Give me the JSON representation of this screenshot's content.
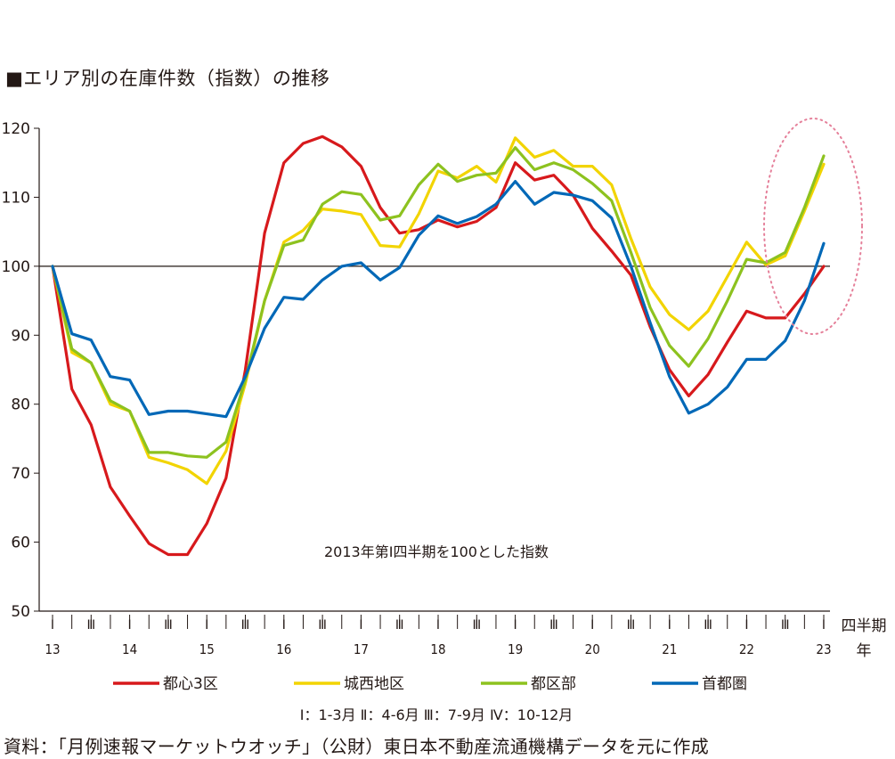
{
  "title": "■エリア別の在庫件数（指数）の推移",
  "source": "資料：「月例速報マーケットウオッチ」（公財）東日本不動産流通機構データを元に作成",
  "chart_data": {
    "type": "line",
    "ylim": [
      50,
      120
    ],
    "yticks": [
      50,
      60,
      70,
      80,
      90,
      100,
      110,
      120
    ],
    "reference_line": 100,
    "annotation": "2013年第Ⅰ四半期を100とした指数",
    "quarter_note": "Ⅰ：1-3月 Ⅱ：4-6月 Ⅲ：7-9月 Ⅳ：10-12月",
    "x_unit_line1": "四半期",
    "x_unit_line2": "年",
    "quarter_labels": [
      "Ⅰ",
      "Ⅱ",
      "Ⅲ",
      "Ⅳ"
    ],
    "years": [
      "13",
      "14",
      "15",
      "16",
      "17",
      "18",
      "19",
      "20",
      "21",
      "22",
      "23"
    ],
    "x": [
      "13Q1",
      "13Q2",
      "13Q3",
      "13Q4",
      "14Q1",
      "14Q2",
      "14Q3",
      "14Q4",
      "15Q1",
      "15Q2",
      "15Q3",
      "15Q4",
      "16Q1",
      "16Q2",
      "16Q3",
      "16Q4",
      "17Q1",
      "17Q2",
      "17Q3",
      "17Q4",
      "18Q1",
      "18Q2",
      "18Q3",
      "18Q4",
      "19Q1",
      "19Q2",
      "19Q3",
      "19Q4",
      "20Q1",
      "20Q2",
      "20Q3",
      "20Q4",
      "21Q1",
      "21Q2",
      "21Q3",
      "21Q4",
      "22Q1",
      "22Q2",
      "22Q3",
      "22Q4",
      "23Q1"
    ],
    "series": [
      {
        "name": "都心3区",
        "color": "#d7191c",
        "values": [
          100,
          82.2,
          77,
          68,
          63.8,
          59.8,
          58.2,
          58.2,
          62.7,
          69.3,
          85,
          104.8,
          115,
          117.8,
          118.8,
          117.3,
          114.5,
          108.5,
          104.8,
          105.3,
          106.7,
          105.7,
          106.5,
          108.5,
          115,
          112.5,
          113.2,
          110.3,
          105.5,
          102.2,
          98.7,
          91.2,
          85,
          81.2,
          84.3,
          89,
          93.5,
          92.5,
          92.5,
          96,
          100
        ]
      },
      {
        "name": "城西地区",
        "color": "#f2d400",
        "values": [
          100,
          87.5,
          86,
          80,
          79,
          72.3,
          71.5,
          70.5,
          68.5,
          73.2,
          83,
          95,
          103.5,
          105.2,
          108.3,
          108,
          107.5,
          103,
          102.8,
          107.6,
          113.8,
          112.8,
          114.5,
          112.2,
          118.6,
          115.8,
          116.8,
          114.5,
          114.5,
          111.8,
          104,
          97,
          93,
          90.8,
          93.5,
          98.5,
          103.5,
          100.2,
          101.5,
          108,
          114.8
        ]
      },
      {
        "name": "都区部",
        "color": "#8dc21f",
        "values": [
          100,
          88,
          86,
          80.5,
          79,
          73,
          73,
          72.5,
          72.3,
          74.5,
          83.5,
          95,
          103,
          103.8,
          109,
          110.8,
          110.4,
          106.7,
          107.3,
          111.8,
          114.8,
          112.3,
          113.2,
          113.5,
          117.2,
          114,
          115,
          114,
          112,
          109.5,
          102,
          94,
          88.5,
          85.5,
          89.5,
          95,
          101,
          100.5,
          102,
          108.5,
          116
        ]
      },
      {
        "name": "首都圏",
        "color": "#0068b7",
        "values": [
          100,
          90.2,
          89.3,
          84,
          83.5,
          78.5,
          79,
          79,
          78.6,
          78.2,
          84,
          91,
          95.5,
          95.2,
          98,
          100,
          100.5,
          98,
          99.8,
          104.5,
          107.3,
          106.2,
          107.2,
          109,
          112.3,
          109,
          110.7,
          110.3,
          109.5,
          107,
          100,
          91.8,
          84,
          78.7,
          80,
          82.5,
          86.5,
          86.5,
          89.2,
          95,
          103.3
        ]
      }
    ]
  }
}
